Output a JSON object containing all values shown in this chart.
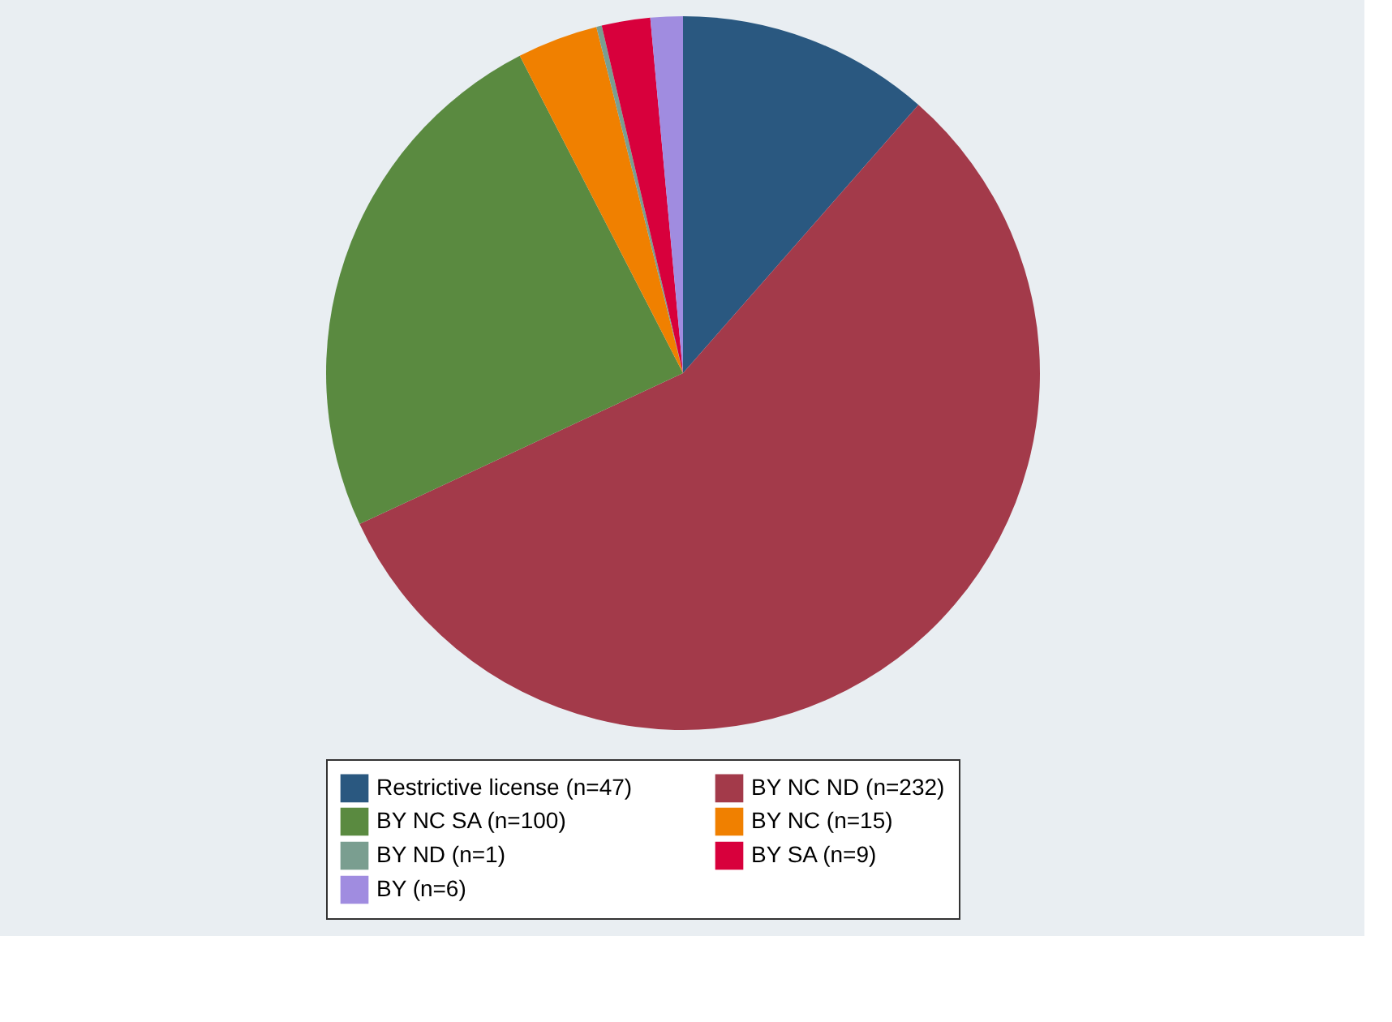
{
  "chart_data": {
    "type": "pie",
    "categories": [
      "Restrictive license (n=47)",
      "BY NC ND (n=232)",
      "BY NC SA (n=100)",
      "BY NC (n=15)",
      "BY ND (n=1)",
      "BY SA (n=9)",
      "BY (n=6)"
    ],
    "values": [
      47,
      232,
      100,
      15,
      1,
      9,
      6
    ],
    "colors": [
      "#2a5880",
      "#a33a4a",
      "#5a8a40",
      "#f08000",
      "#7a9e90",
      "#d8003c",
      "#a08ce0"
    ],
    "legend": "bottom"
  }
}
